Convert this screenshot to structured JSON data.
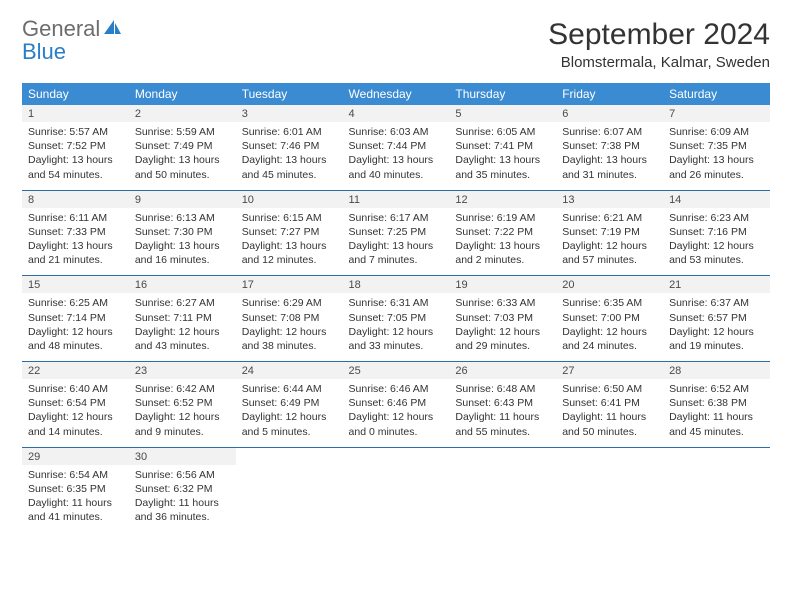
{
  "logo": {
    "text1": "General",
    "text2": "Blue"
  },
  "title": "September 2024",
  "location": "Blomstermala, Kalmar, Sweden",
  "colors": {
    "header_bg": "#3a8bd1",
    "header_text": "#ffffff",
    "daynum_bg": "#f2f2f2",
    "divider": "#2a6fa8",
    "logo_gray": "#6d6d6d",
    "logo_blue": "#2a7ec5",
    "body_text": "#333333"
  },
  "weekdays": [
    "Sunday",
    "Monday",
    "Tuesday",
    "Wednesday",
    "Thursday",
    "Friday",
    "Saturday"
  ],
  "weeks": [
    [
      {
        "n": "1",
        "sr": "5:57 AM",
        "ss": "7:52 PM",
        "dl": "13 hours and 54 minutes."
      },
      {
        "n": "2",
        "sr": "5:59 AM",
        "ss": "7:49 PM",
        "dl": "13 hours and 50 minutes."
      },
      {
        "n": "3",
        "sr": "6:01 AM",
        "ss": "7:46 PM",
        "dl": "13 hours and 45 minutes."
      },
      {
        "n": "4",
        "sr": "6:03 AM",
        "ss": "7:44 PM",
        "dl": "13 hours and 40 minutes."
      },
      {
        "n": "5",
        "sr": "6:05 AM",
        "ss": "7:41 PM",
        "dl": "13 hours and 35 minutes."
      },
      {
        "n": "6",
        "sr": "6:07 AM",
        "ss": "7:38 PM",
        "dl": "13 hours and 31 minutes."
      },
      {
        "n": "7",
        "sr": "6:09 AM",
        "ss": "7:35 PM",
        "dl": "13 hours and 26 minutes."
      }
    ],
    [
      {
        "n": "8",
        "sr": "6:11 AM",
        "ss": "7:33 PM",
        "dl": "13 hours and 21 minutes."
      },
      {
        "n": "9",
        "sr": "6:13 AM",
        "ss": "7:30 PM",
        "dl": "13 hours and 16 minutes."
      },
      {
        "n": "10",
        "sr": "6:15 AM",
        "ss": "7:27 PM",
        "dl": "13 hours and 12 minutes."
      },
      {
        "n": "11",
        "sr": "6:17 AM",
        "ss": "7:25 PM",
        "dl": "13 hours and 7 minutes."
      },
      {
        "n": "12",
        "sr": "6:19 AM",
        "ss": "7:22 PM",
        "dl": "13 hours and 2 minutes."
      },
      {
        "n": "13",
        "sr": "6:21 AM",
        "ss": "7:19 PM",
        "dl": "12 hours and 57 minutes."
      },
      {
        "n": "14",
        "sr": "6:23 AM",
        "ss": "7:16 PM",
        "dl": "12 hours and 53 minutes."
      }
    ],
    [
      {
        "n": "15",
        "sr": "6:25 AM",
        "ss": "7:14 PM",
        "dl": "12 hours and 48 minutes."
      },
      {
        "n": "16",
        "sr": "6:27 AM",
        "ss": "7:11 PM",
        "dl": "12 hours and 43 minutes."
      },
      {
        "n": "17",
        "sr": "6:29 AM",
        "ss": "7:08 PM",
        "dl": "12 hours and 38 minutes."
      },
      {
        "n": "18",
        "sr": "6:31 AM",
        "ss": "7:05 PM",
        "dl": "12 hours and 33 minutes."
      },
      {
        "n": "19",
        "sr": "6:33 AM",
        "ss": "7:03 PM",
        "dl": "12 hours and 29 minutes."
      },
      {
        "n": "20",
        "sr": "6:35 AM",
        "ss": "7:00 PM",
        "dl": "12 hours and 24 minutes."
      },
      {
        "n": "21",
        "sr": "6:37 AM",
        "ss": "6:57 PM",
        "dl": "12 hours and 19 minutes."
      }
    ],
    [
      {
        "n": "22",
        "sr": "6:40 AM",
        "ss": "6:54 PM",
        "dl": "12 hours and 14 minutes."
      },
      {
        "n": "23",
        "sr": "6:42 AM",
        "ss": "6:52 PM",
        "dl": "12 hours and 9 minutes."
      },
      {
        "n": "24",
        "sr": "6:44 AM",
        "ss": "6:49 PM",
        "dl": "12 hours and 5 minutes."
      },
      {
        "n": "25",
        "sr": "6:46 AM",
        "ss": "6:46 PM",
        "dl": "12 hours and 0 minutes."
      },
      {
        "n": "26",
        "sr": "6:48 AM",
        "ss": "6:43 PM",
        "dl": "11 hours and 55 minutes."
      },
      {
        "n": "27",
        "sr": "6:50 AM",
        "ss": "6:41 PM",
        "dl": "11 hours and 50 minutes."
      },
      {
        "n": "28",
        "sr": "6:52 AM",
        "ss": "6:38 PM",
        "dl": "11 hours and 45 minutes."
      }
    ],
    [
      {
        "n": "29",
        "sr": "6:54 AM",
        "ss": "6:35 PM",
        "dl": "11 hours and 41 minutes."
      },
      {
        "n": "30",
        "sr": "6:56 AM",
        "ss": "6:32 PM",
        "dl": "11 hours and 36 minutes."
      },
      null,
      null,
      null,
      null,
      null
    ]
  ],
  "labels": {
    "sunrise": "Sunrise:",
    "sunset": "Sunset:",
    "daylight": "Daylight:"
  }
}
